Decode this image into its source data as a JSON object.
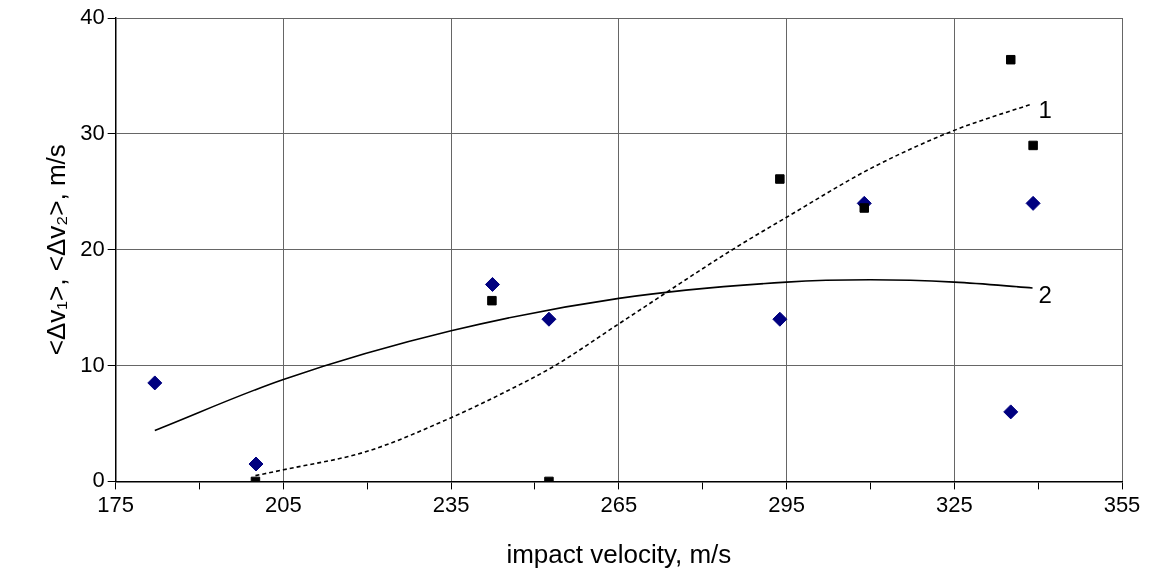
{
  "chart_data": {
    "type": "scatter",
    "xlabel": "impact velocity, m/s",
    "ylabel": "<Δv₁>, <Δv₂>, m/s",
    "xlim": [
      175,
      355
    ],
    "ylim": [
      0,
      40
    ],
    "xticks": [
      175,
      {
        "value": 190,
        "label": null
      },
      205,
      {
        "value": 220,
        "label": null
      },
      235,
      {
        "value": 250,
        "label": null
      },
      265,
      {
        "value": 280,
        "label": null
      },
      295,
      {
        "value": 310,
        "label": null
      },
      325,
      {
        "value": 340,
        "label": null
      },
      355
    ],
    "yticks": [
      0,
      10,
      20,
      30,
      40
    ],
    "grid": true,
    "legend": false,
    "series": [
      {
        "type": "scatter",
        "marker": "square",
        "color": "#000000",
        "x": [
          200,
          242.3,
          252.5,
          293.8,
          308.9,
          335.1,
          339.1
        ],
        "values": [
          0,
          15.6,
          0,
          26.1,
          23.6,
          36.4,
          29.0
        ]
      },
      {
        "type": "scatter",
        "marker": "diamond",
        "color": "#000080",
        "x": [
          182,
          200.1,
          242.4,
          252.5,
          293.8,
          308.9,
          335.1,
          339.1
        ],
        "values": [
          8.5,
          1.5,
          17.0,
          14.0,
          14.0,
          24.0,
          6.0,
          24.0
        ]
      },
      {
        "type": "line",
        "name": "1",
        "marker": "none",
        "line_style": "dashed",
        "color": "#000000",
        "x": [
          200,
          205,
          220,
          235,
          245,
          253.6,
          265,
          285.3,
          295,
          310,
          325,
          339
        ],
        "values": [
          0.5,
          1.0,
          2.6,
          5.5,
          7.8,
          10,
          13.6,
          20,
          22.8,
          27,
          30.3,
          32.6
        ]
      },
      {
        "type": "line",
        "name": "2",
        "marker": "none",
        "line_style": "solid",
        "color": "#000000",
        "x": [
          182,
          205,
          235,
          265,
          295,
          310,
          325,
          339
        ],
        "values": [
          4.4,
          8.8,
          13.0,
          15.8,
          17.2,
          17.4,
          17.2,
          16.7
        ]
      }
    ]
  }
}
